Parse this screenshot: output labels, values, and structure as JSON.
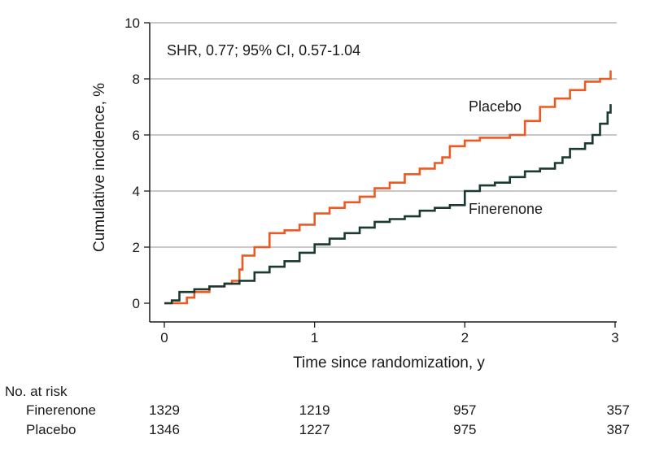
{
  "chart_data": {
    "type": "line",
    "step": true,
    "xlabel": "Time since randomization, y",
    "ylabel": "Cumulative incidence, %",
    "xlim": [
      0,
      3
    ],
    "ylim": [
      0,
      10
    ],
    "x_ticks": [
      0,
      1,
      2,
      3
    ],
    "y_ticks": [
      0,
      2,
      4,
      6,
      8,
      10
    ],
    "grid": "horizontal",
    "annotation": "SHR, 0.77; 95% CI, 0.57-1.04",
    "series": [
      {
        "name": "Placebo",
        "color": "#ec5a24",
        "x": [
          0,
          0.1,
          0.15,
          0.2,
          0.3,
          0.4,
          0.45,
          0.5,
          0.52,
          0.6,
          0.7,
          0.8,
          0.9,
          1.0,
          1.1,
          1.2,
          1.3,
          1.4,
          1.5,
          1.6,
          1.7,
          1.8,
          1.85,
          1.9,
          2.0,
          2.1,
          2.2,
          2.3,
          2.4,
          2.5,
          2.6,
          2.7,
          2.8,
          2.9,
          2.97
        ],
        "y": [
          0,
          0,
          0.2,
          0.4,
          0.6,
          0.7,
          0.8,
          1.2,
          1.7,
          2.0,
          2.5,
          2.6,
          2.8,
          3.2,
          3.4,
          3.6,
          3.8,
          4.1,
          4.3,
          4.6,
          4.8,
          5.0,
          5.2,
          5.6,
          5.8,
          5.9,
          5.9,
          6.0,
          6.5,
          7.0,
          7.3,
          7.6,
          7.9,
          8.0,
          8.3
        ]
      },
      {
        "name": "Finerenone",
        "color": "#1a3a30",
        "x": [
          0,
          0.05,
          0.1,
          0.2,
          0.3,
          0.4,
          0.5,
          0.6,
          0.7,
          0.8,
          0.9,
          1.0,
          1.1,
          1.2,
          1.3,
          1.4,
          1.5,
          1.6,
          1.7,
          1.8,
          1.9,
          2.0,
          2.1,
          2.2,
          2.3,
          2.4,
          2.5,
          2.6,
          2.65,
          2.7,
          2.8,
          2.85,
          2.9,
          2.95,
          2.97
        ],
        "y": [
          0,
          0.1,
          0.4,
          0.5,
          0.6,
          0.7,
          0.8,
          1.1,
          1.3,
          1.5,
          1.8,
          2.1,
          2.3,
          2.5,
          2.7,
          2.9,
          3.0,
          3.1,
          3.3,
          3.4,
          3.5,
          4.0,
          4.2,
          4.3,
          4.5,
          4.7,
          4.8,
          5.0,
          5.2,
          5.5,
          5.7,
          6.0,
          6.4,
          6.8,
          7.1
        ]
      }
    ]
  },
  "risk_table": {
    "title": "No. at risk",
    "rows": [
      {
        "label": "Finerenone",
        "values": [
          "1329",
          "1219",
          "957",
          "357"
        ]
      },
      {
        "label": "Placebo",
        "values": [
          "1346",
          "1227",
          "975",
          "387"
        ]
      }
    ]
  }
}
